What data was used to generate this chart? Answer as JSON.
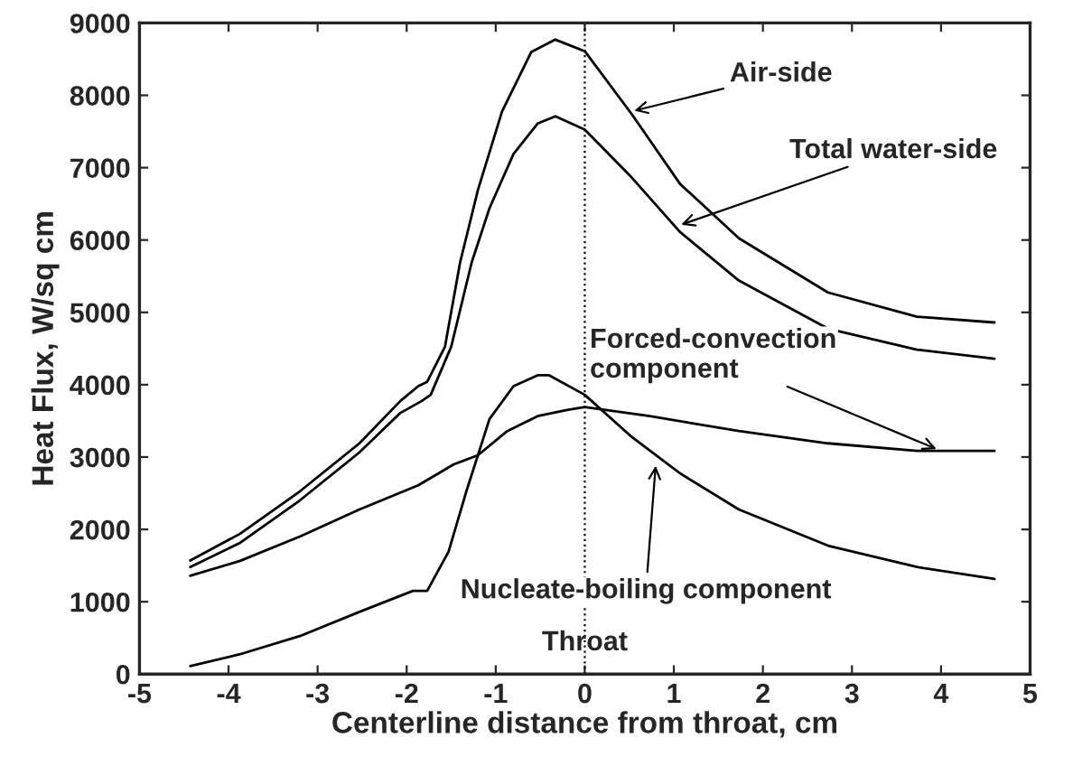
{
  "chart_data": {
    "type": "line",
    "xlabel": "Centerline distance from throat, cm",
    "ylabel": "Heat Flux, W/sq cm",
    "xlim": [
      -5,
      5
    ],
    "ylim": [
      0,
      9000
    ],
    "xticks": [
      -5,
      -4,
      -3,
      -2,
      -1,
      0,
      1,
      2,
      3,
      4,
      5
    ],
    "yticks": [
      0,
      1000,
      2000,
      3000,
      4000,
      5000,
      6000,
      7000,
      8000,
      9000
    ],
    "grid": false,
    "legend": false,
    "marker": "none",
    "line_style": "solid",
    "series": [
      {
        "color": "#000000",
        "x": [
          -4.43,
          -3.87,
          -3.2,
          -2.53,
          -2.07,
          -1.87,
          -1.77,
          -1.57,
          -1.4,
          -1.2,
          -0.93,
          -0.6,
          -0.33,
          0,
          0.53,
          1.07,
          1.73,
          2.73,
          3.73,
          4.6
        ],
        "values": [
          1570,
          1940,
          2525,
          3190,
          3775,
          3980,
          4040,
          4525,
          5690,
          6690,
          7775,
          8600,
          8770,
          8610,
          7735,
          6775,
          6025,
          5275,
          4940,
          4860
        ]
      },
      {
        "color": "#000000",
        "x": [
          -4.43,
          -3.87,
          -3.2,
          -2.53,
          -2.07,
          -1.83,
          -1.73,
          -1.5,
          -1.27,
          -1.07,
          -0.8,
          -0.53,
          -0.33,
          0,
          0.53,
          1.07,
          1.73,
          2.73,
          3.73,
          4.6
        ],
        "values": [
          1480,
          1815,
          2400,
          3065,
          3610,
          3775,
          3860,
          4525,
          5690,
          6440,
          7190,
          7610,
          7710,
          7525,
          6860,
          6110,
          5440,
          4775,
          4485,
          4360
        ]
      },
      {
        "color": "#000000",
        "x": [
          -4.43,
          -3.87,
          -3.2,
          -2.53,
          -1.87,
          -1.47,
          -1.2,
          -0.87,
          -0.53,
          -0.2,
          0,
          0.73,
          1.73,
          2.73,
          3.73,
          4.6
        ],
        "values": [
          1360,
          1565,
          1900,
          2275,
          2610,
          2900,
          3025,
          3360,
          3565,
          3650,
          3690,
          3565,
          3360,
          3190,
          3085,
          3085
        ]
      },
      {
        "color": "#000000",
        "x": [
          -4.43,
          -3.87,
          -3.2,
          -2.53,
          -1.93,
          -1.77,
          -1.53,
          -1.33,
          -1.07,
          -0.8,
          -0.53,
          -0.4,
          0,
          0.53,
          1.07,
          1.73,
          2.73,
          3.73,
          4.6
        ],
        "values": [
          110,
          275,
          525,
          860,
          1150,
          1150,
          1690,
          2525,
          3525,
          3980,
          4130,
          4130,
          3860,
          3275,
          2775,
          2275,
          1775,
          1480,
          1315
        ]
      }
    ],
    "ref_lines": [
      {
        "axis": "x",
        "value": 0,
        "label": "Throat",
        "line_style": "dotted",
        "color": "#000000"
      }
    ],
    "annotations": [
      {
        "text": "Air-side",
        "x": 0.5,
        "y": 7770
      },
      {
        "text": "Total water-side",
        "x": 1.03,
        "y": 6190
      },
      {
        "text": "Forced-convection\ncomponent",
        "x": 4.0,
        "y": 3085
      },
      {
        "text": "Nucleate-boiling component",
        "x": 0.8,
        "y": 2950
      }
    ]
  }
}
